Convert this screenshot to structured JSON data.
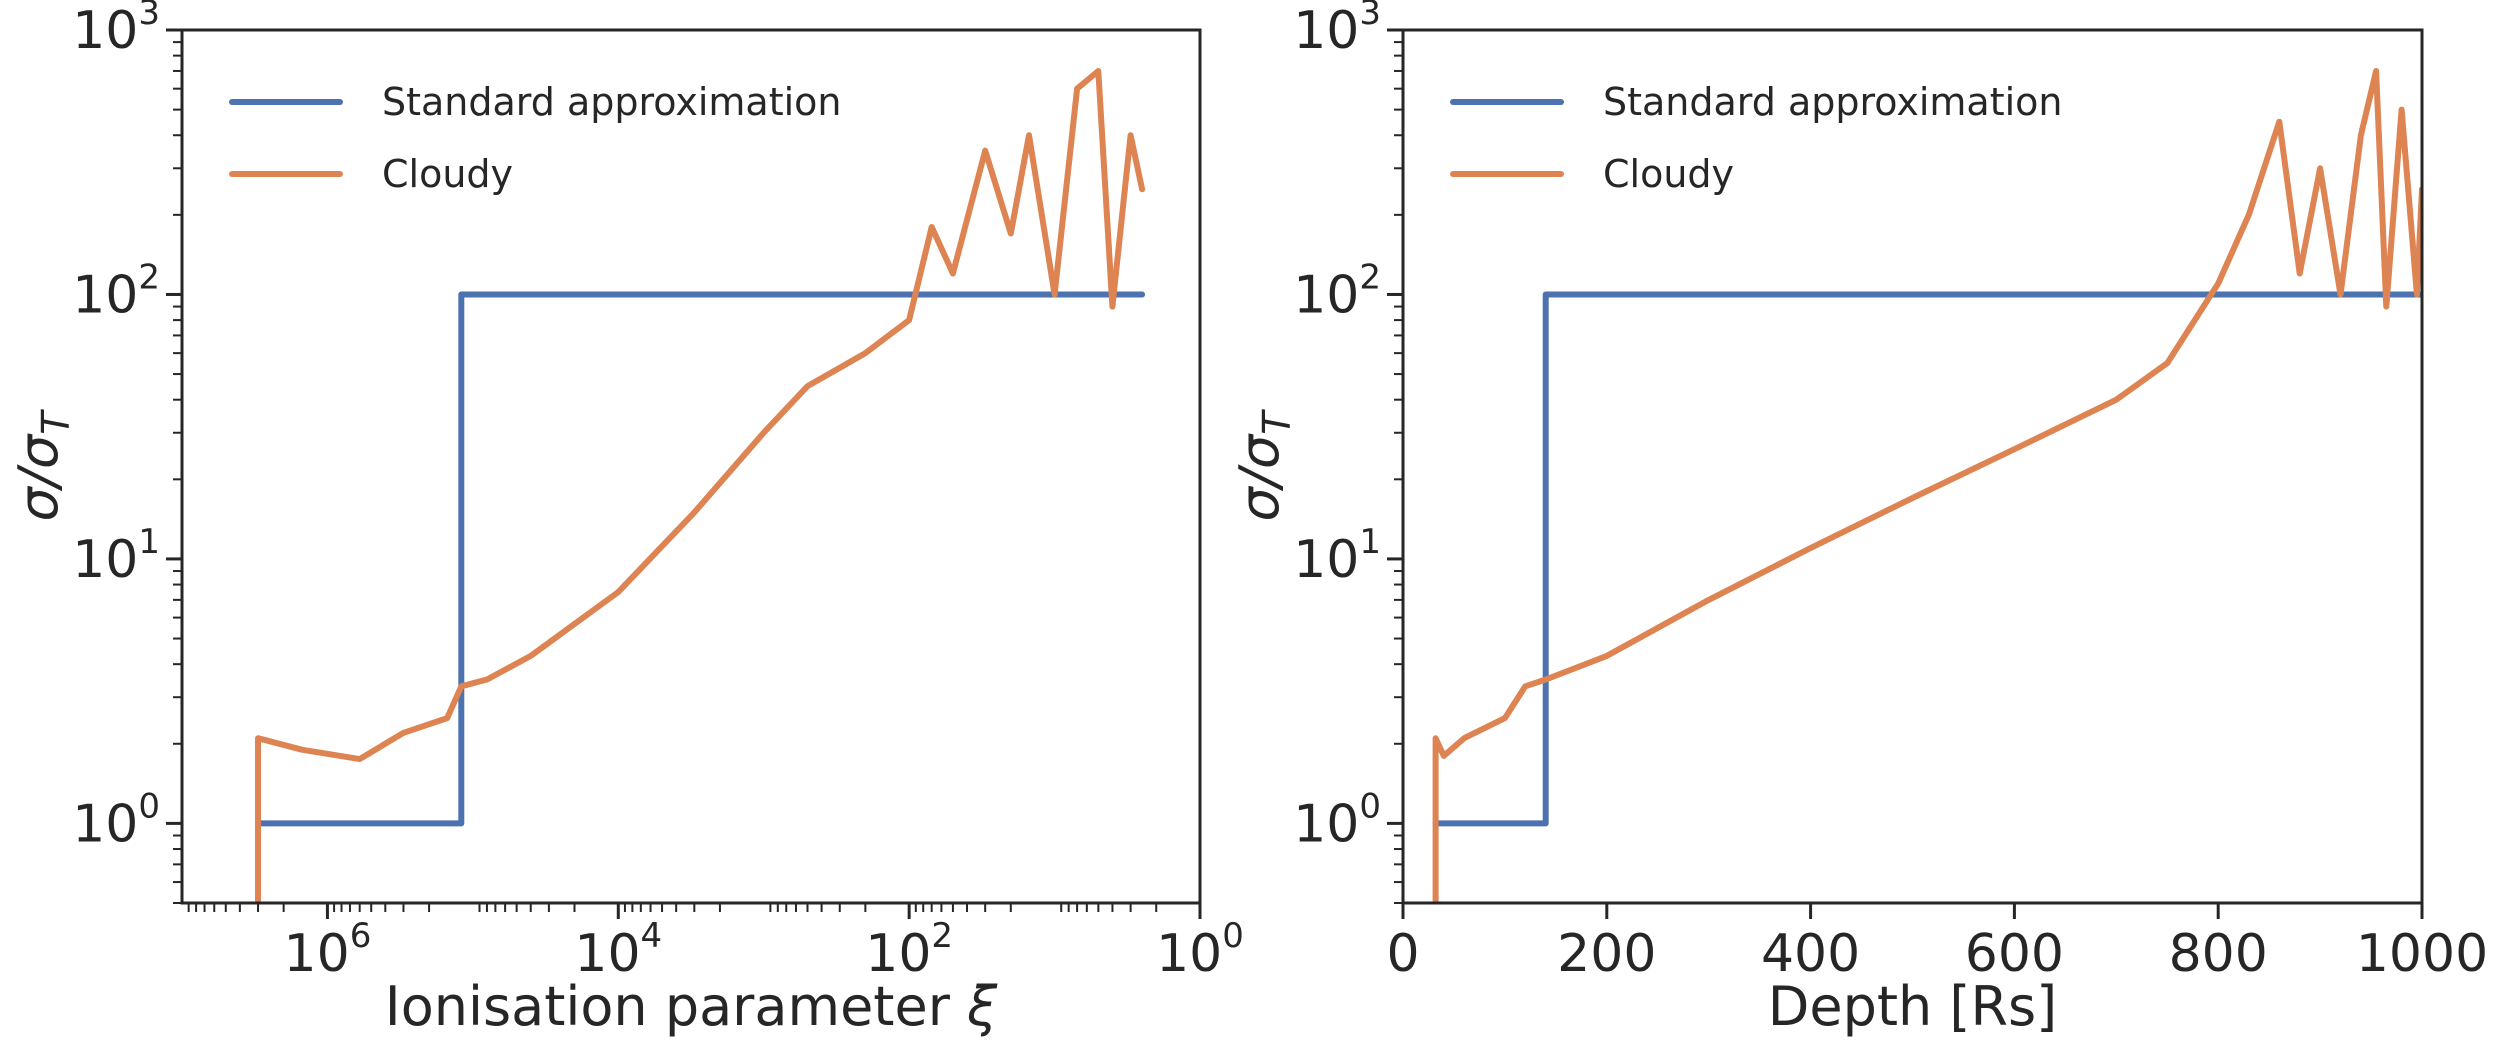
{
  "chart_data": [
    {
      "type": "line",
      "xlabel": "Ionisation parameter",
      "xlabel_symbol": "ξ",
      "ylabel_main": "σ/σ",
      "ylabel_sub": "T",
      "xscale": "log",
      "xaxis_inverted": true,
      "yscale": "log",
      "xlim": [
        10000000,
        1
      ],
      "ylim": [
        0.5,
        1000
      ],
      "x_ticks": [
        {
          "base": "10",
          "exp": "6",
          "value": 1000000
        },
        {
          "base": "10",
          "exp": "4",
          "value": 10000
        },
        {
          "base": "10",
          "exp": "2",
          "value": 100
        },
        {
          "base": "10",
          "exp": "0",
          "value": 1
        }
      ],
      "y_ticks": [
        {
          "base": "10",
          "exp": "0",
          "value": 1
        },
        {
          "base": "10",
          "exp": "1",
          "value": 10
        },
        {
          "base": "10",
          "exp": "2",
          "value": 100
        },
        {
          "base": "10",
          "exp": "3",
          "value": 1000
        }
      ],
      "legend_position": "top-left",
      "series": [
        {
          "name": "Standard approximation",
          "color": "#4c72b0",
          "x": [
            3000000,
            120000,
            120000,
            2.5
          ],
          "y": [
            1,
            1,
            100,
            100
          ]
        },
        {
          "name": "Cloudy",
          "color": "#dd8452",
          "x": [
            3000000,
            3000000,
            1500000,
            600000,
            300000,
            150000,
            120000,
            80000,
            40000,
            10000,
            3000,
            1000,
            500,
            200,
            100,
            70,
            50,
            30,
            20,
            15,
            10,
            7,
            5,
            4,
            3,
            2.5
          ],
          "y": [
            0.5,
            2.1,
            1.9,
            1.75,
            2.2,
            2.5,
            3.3,
            3.5,
            4.3,
            7.5,
            15,
            30,
            45,
            60,
            80,
            180,
            120,
            350,
            170,
            400,
            100,
            600,
            700,
            90,
            400,
            250
          ]
        }
      ]
    },
    {
      "type": "line",
      "xlabel": "Depth [Rs]",
      "ylabel_main": "σ/σ",
      "ylabel_sub": "T",
      "xscale": "linear",
      "yscale": "log",
      "xlim": [
        0,
        1000
      ],
      "ylim": [
        0.5,
        1000
      ],
      "x_ticks": [
        {
          "label": "0",
          "value": 0
        },
        {
          "label": "200",
          "value": 200
        },
        {
          "label": "400",
          "value": 400
        },
        {
          "label": "600",
          "value": 600
        },
        {
          "label": "800",
          "value": 800
        },
        {
          "label": "1000",
          "value": 1000
        }
      ],
      "y_ticks": [
        {
          "base": "10",
          "exp": "0",
          "value": 1
        },
        {
          "base": "10",
          "exp": "1",
          "value": 10
        },
        {
          "base": "10",
          "exp": "2",
          "value": 100
        },
        {
          "base": "10",
          "exp": "3",
          "value": 1000
        }
      ],
      "legend_position": "top-left",
      "series": [
        {
          "name": "Standard approximation",
          "color": "#4c72b0",
          "x": [
            32,
            140,
            140,
            1000
          ],
          "y": [
            1,
            1,
            100,
            100
          ]
        },
        {
          "name": "Cloudy",
          "color": "#dd8452",
          "x": [
            32,
            32,
            40,
            60,
            100,
            120,
            140,
            200,
            300,
            400,
            500,
            600,
            700,
            750,
            800,
            830,
            860,
            880,
            900,
            920,
            940,
            955,
            965,
            980,
            995,
            1000
          ],
          "y": [
            0.5,
            2.1,
            1.8,
            2.1,
            2.5,
            3.3,
            3.5,
            4.3,
            7.0,
            11,
            17,
            26,
            40,
            55,
            110,
            200,
            450,
            120,
            300,
            100,
            400,
            700,
            90,
            500,
            100,
            250
          ]
        }
      ]
    }
  ]
}
